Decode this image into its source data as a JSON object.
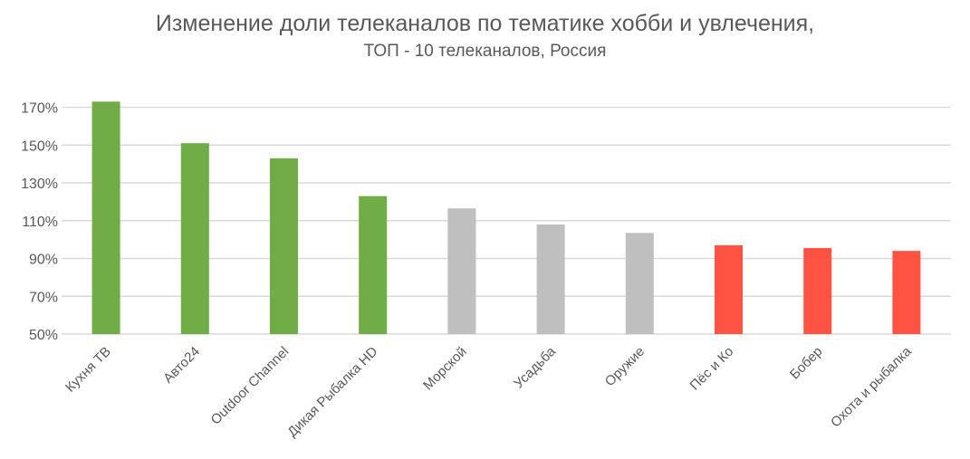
{
  "chart_data": {
    "type": "bar",
    "title": "Изменение доли телеканалов по тематике хобби и увлечения,",
    "subtitle": "ТОП - 10 телеканалов, Россия",
    "xlabel": "",
    "ylabel": "",
    "categories": [
      "Кухня ТВ",
      "Авто24",
      "Outdoor Channel",
      "Дикая Рыбалка HD",
      "Морской",
      "Усадьба",
      "Оружие",
      "Пёс и Ко",
      "Бобер",
      "Охота и рыбалка"
    ],
    "values": [
      173,
      151,
      143,
      123,
      116.5,
      108,
      103.5,
      97,
      95.5,
      94
    ],
    "colors": [
      "#70ad47",
      "#70ad47",
      "#70ad47",
      "#70ad47",
      "#bfbfbf",
      "#bfbfbf",
      "#bfbfbf",
      "#ff5242",
      "#ff5242",
      "#ff5242"
    ],
    "value_unit": "%",
    "ylim": [
      50,
      170
    ],
    "yticks": [
      "50%",
      "70%",
      "90%",
      "110%",
      "130%",
      "150%",
      "170%"
    ],
    "grid": true,
    "legend": "none"
  }
}
